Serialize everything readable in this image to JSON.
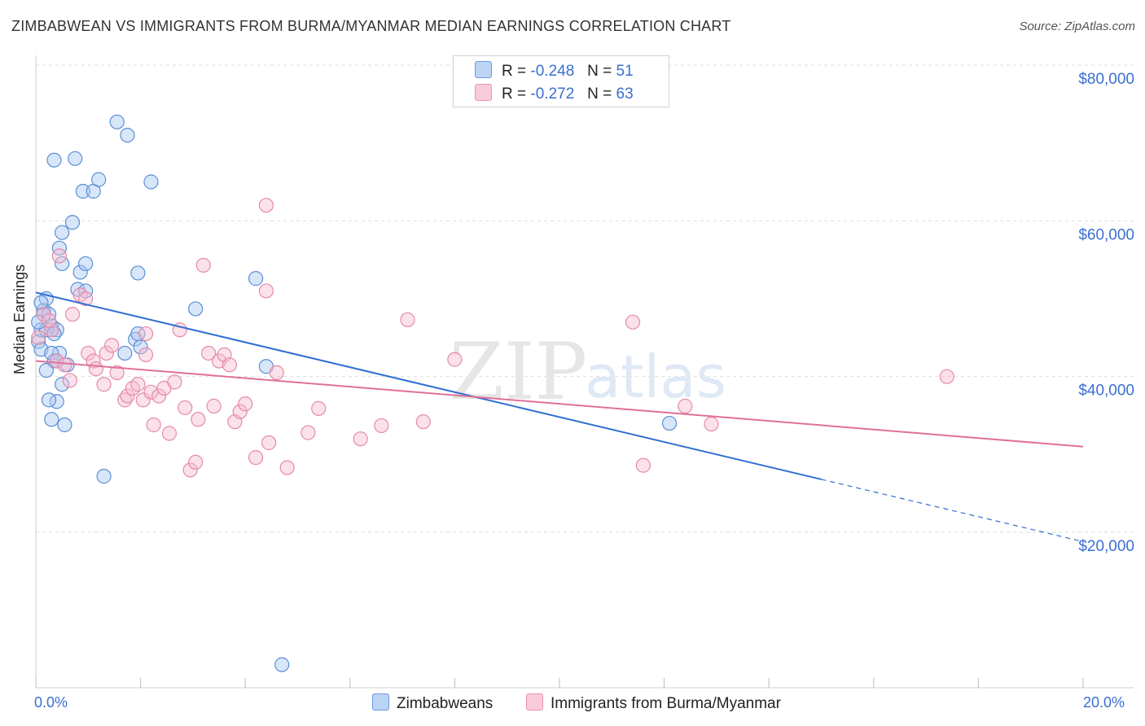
{
  "title": "ZIMBABWEAN VS IMMIGRANTS FROM BURMA/MYANMAR MEDIAN EARNINGS CORRELATION CHART",
  "source": "Source: ZipAtlas.com",
  "watermark": {
    "zip": "ZIP",
    "atlas": "atlas"
  },
  "colors": {
    "blue_fill": "#a9c8f2",
    "blue_stroke": "#5b8fd6",
    "blue_line": "#2f6fd0",
    "pink_fill": "#f7bdd0",
    "pink_stroke": "#e58aa8",
    "pink_line": "#e0709a",
    "tick_text": "#3a6fd0",
    "grid": "#dddddd"
  },
  "legend": {
    "blue": {
      "r_label": "R =",
      "r_value": "-0.248",
      "n_label": "N =",
      "n_value": "51"
    },
    "pink": {
      "r_label": "R =",
      "r_value": "-0.272",
      "n_label": "N =",
      "n_value": "63"
    }
  },
  "chart_data": {
    "type": "scatter",
    "title": "ZIMBABWEAN VS IMMIGRANTS FROM BURMA/MYANMAR MEDIAN EARNINGS CORRELATION CHART",
    "xlabel": "",
    "ylabel": "Median Earnings",
    "xlim": [
      0,
      20
    ],
    "ylim": [
      0,
      82000
    ],
    "x_tick_labels": [
      "0.0%",
      "20.0%"
    ],
    "y_ticks": [
      20000,
      40000,
      60000,
      80000
    ],
    "y_tick_labels": [
      "$20,000",
      "$40,000",
      "$60,000",
      "$80,000"
    ],
    "grid": true,
    "legend_position": "top-center",
    "series": [
      {
        "name": "Zimbabweans",
        "color": "#a9c8f2",
        "trend": {
          "x0": 0,
          "y0": 50800,
          "x1": 15,
          "y1": 26800,
          "dashed_to_x": 20,
          "dashed_to_y": 18800
        },
        "points": [
          [
            0.05,
            44500
          ],
          [
            0.1,
            46000
          ],
          [
            0.15,
            48500
          ],
          [
            0.2,
            50000
          ],
          [
            0.1,
            43500
          ],
          [
            0.25,
            48000
          ],
          [
            0.3,
            46500
          ],
          [
            0.35,
            42000
          ],
          [
            0.2,
            40800
          ],
          [
            0.4,
            36800
          ],
          [
            0.3,
            34500
          ],
          [
            0.55,
            33800
          ],
          [
            0.5,
            39000
          ],
          [
            0.45,
            43000
          ],
          [
            0.4,
            46000
          ],
          [
            0.5,
            54500
          ],
          [
            0.45,
            56500
          ],
          [
            0.5,
            58500
          ],
          [
            0.7,
            59800
          ],
          [
            0.35,
            67800
          ],
          [
            0.75,
            68000
          ],
          [
            0.9,
            63800
          ],
          [
            1.1,
            63800
          ],
          [
            1.2,
            65300
          ],
          [
            1.55,
            72700
          ],
          [
            1.75,
            71000
          ],
          [
            2.2,
            65000
          ],
          [
            0.85,
            53400
          ],
          [
            0.95,
            54500
          ],
          [
            0.8,
            51200
          ],
          [
            0.95,
            51000
          ],
          [
            1.3,
            27200
          ],
          [
            1.7,
            43000
          ],
          [
            1.9,
            44800
          ],
          [
            2.0,
            43800
          ],
          [
            1.95,
            45500
          ],
          [
            1.95,
            53300
          ],
          [
            3.05,
            48700
          ],
          [
            4.2,
            52600
          ],
          [
            4.4,
            41300
          ],
          [
            4.7,
            3000
          ],
          [
            12.1,
            34000
          ],
          [
            0.15,
            48000
          ],
          [
            0.2,
            46000
          ],
          [
            0.3,
            43000
          ],
          [
            0.6,
            41500
          ],
          [
            0.4,
            42000
          ],
          [
            0.25,
            37000
          ],
          [
            0.05,
            47000
          ],
          [
            0.1,
            49500
          ],
          [
            0.35,
            45500
          ]
        ]
      },
      {
        "name": "Immigrants from Burma/Myanmar",
        "color": "#f7bdd0",
        "trend": {
          "x0": 0,
          "y0": 42000,
          "x1": 20,
          "y1": 31000
        },
        "points": [
          [
            0.05,
            45000
          ],
          [
            0.15,
            48000
          ],
          [
            0.3,
            46000
          ],
          [
            0.4,
            42000
          ],
          [
            0.45,
            55500
          ],
          [
            0.55,
            41500
          ],
          [
            0.7,
            48000
          ],
          [
            0.65,
            39500
          ],
          [
            0.85,
            50500
          ],
          [
            0.95,
            50000
          ],
          [
            1.0,
            43000
          ],
          [
            1.1,
            42000
          ],
          [
            1.15,
            41000
          ],
          [
            1.3,
            39000
          ],
          [
            1.35,
            43000
          ],
          [
            1.45,
            44000
          ],
          [
            1.55,
            40500
          ],
          [
            1.7,
            37000
          ],
          [
            1.75,
            37500
          ],
          [
            1.85,
            38500
          ],
          [
            1.95,
            39000
          ],
          [
            2.05,
            37000
          ],
          [
            2.1,
            45500
          ],
          [
            2.2,
            38000
          ],
          [
            2.25,
            33800
          ],
          [
            2.35,
            37500
          ],
          [
            2.45,
            38500
          ],
          [
            2.55,
            32700
          ],
          [
            2.65,
            39300
          ],
          [
            2.75,
            46000
          ],
          [
            2.85,
            36000
          ],
          [
            2.95,
            28000
          ],
          [
            3.05,
            29000
          ],
          [
            3.1,
            34500
          ],
          [
            3.2,
            54300
          ],
          [
            3.3,
            43000
          ],
          [
            3.4,
            36200
          ],
          [
            3.5,
            42000
          ],
          [
            3.6,
            42800
          ],
          [
            3.7,
            41500
          ],
          [
            3.8,
            34200
          ],
          [
            3.9,
            35500
          ],
          [
            4.0,
            36500
          ],
          [
            4.2,
            29600
          ],
          [
            4.4,
            51000
          ],
          [
            4.45,
            31500
          ],
          [
            4.4,
            62000
          ],
          [
            4.6,
            40500
          ],
          [
            4.8,
            28300
          ],
          [
            5.2,
            32800
          ],
          [
            5.4,
            35900
          ],
          [
            6.2,
            32000
          ],
          [
            6.6,
            33700
          ],
          [
            7.1,
            47300
          ],
          [
            7.4,
            34200
          ],
          [
            8.0,
            42200
          ],
          [
            11.4,
            47000
          ],
          [
            11.6,
            28600
          ],
          [
            12.4,
            36200
          ],
          [
            12.9,
            33900
          ],
          [
            17.4,
            40000
          ],
          [
            2.1,
            42800
          ],
          [
            0.25,
            47200
          ]
        ]
      }
    ]
  },
  "bottom_legend": {
    "blue": "Zimbabweans",
    "pink": "Immigrants from Burma/Myanmar"
  }
}
